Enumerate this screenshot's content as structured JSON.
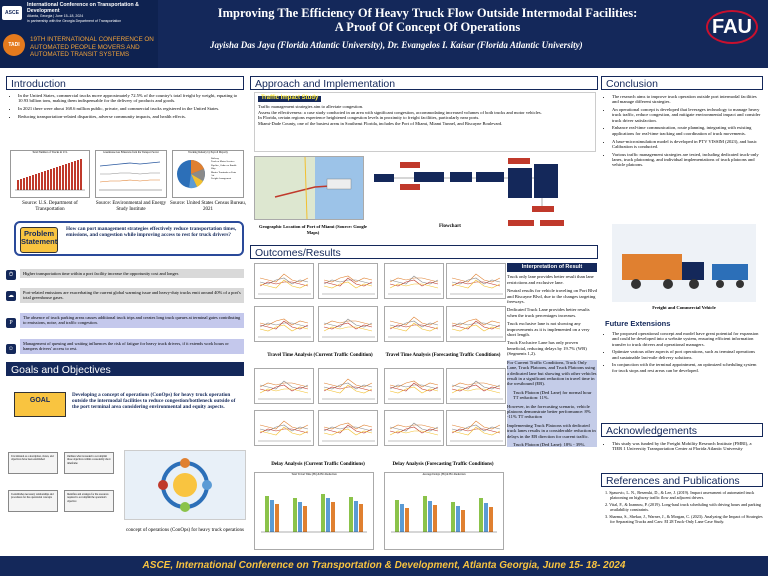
{
  "header": {
    "conf_line1": "International Conference on Transportation & Development",
    "conf_line2": "Atlanta, Georgia | June 15–18, 2024",
    "conf_line3": "in partnership with the Georgia Department of Transportation",
    "asce_logo": "ASCE",
    "tadi_logo": "TADI",
    "conf2": "19TH INTERNATIONAL CONFERENCE ON AUTOMATED PEOPLE MOVERS AND AUTOMATED TRANSIT SYSTEMS",
    "title_line1": "Improving The Efficiency Of Heavy Truck Flow Outside Intermodal Facilities:",
    "title_line2": "A Proof Of Concept Of Operations",
    "authors": "Jayisha Das Jaya (Florida Atlantic University), Dr. Evangelos I. Kaisar (Florida Atlantic University)",
    "fau_logo": "FAU"
  },
  "introduction": {
    "heading": "Introduction",
    "bullets": [
      "In the United States, commercial trucks move approximately 72.5% of the country's total freight by weight, equating to 10.93 billion tons, making them indispensable for the delivery of products and goods.",
      "In 2021 there were about 168.6 million public, private, and commercial trucks registered in the United States.",
      "Reducing transportation-related disparities, adverse community impacts, and health effects."
    ],
    "chart_titles": [
      "Total Number of Trucks in U.S.",
      "Greenhouse Gas Emissions from the Transport Sector",
      "Trucking Industry by Payroll Majority"
    ],
    "pie_legend": [
      "Railway",
      "Truck or Motor Services",
      "Pipeline, Gather or Bundle",
      "Ship",
      "Marine Terminals or Ports",
      "Air",
      "Freight Arrangement"
    ],
    "sources": [
      "Source: U.S. Department of Transportation",
      "Source: Environmental and Energy Study Institute",
      "Source: United States Census Bureau, 2021"
    ]
  },
  "problem": {
    "label": "Problem Statement",
    "text": "How can port management strategies effectively reduce transportation times, emissions, and congestion while improving access to rest for truck drivers?",
    "items": [
      "Higher transportation time within a port facility increase the opportunity cost and longer.",
      "Port-related emissions are exacerbating the current global warming issue and heavy-duty trucks emit around 40% of a port's total greenhouse gases.",
      "The absence of truck parking areas causes additional truck trips and creates long truck queues at terminal gates contributing to emissions, noise, and traffic congestion.",
      "Management of queuing and waiting influences the risk of fatigue for heavy truck drivers, if it extends work hours or hampers drivers' access to rest."
    ]
  },
  "goals": {
    "heading": "Goals and Objectives",
    "label": "GOAL",
    "text": "Developing a concept of operations (ConOps) for heavy truck operation outside the intermodal facilities to reduce congestion/bottleneck outside of the port terminal area considering environmental and equity aspects.",
    "cards": [
      "It is initiated as a description, vision, and objectives have been established",
      "Outlines what is needed to accomplish those objectives within a reasonably short timeframe",
      "It establishes necessary relationships and procedures for the operational concepts",
      "Identifies and arranges for the resources required to accomplish the operation's objective"
    ],
    "caption": "concept of operations (ConOps) for heavy truck operations"
  },
  "approach": {
    "heading": "Approach and Implementation",
    "study_label": "Traffic Impact Study",
    "lines": [
      "Traffic management strategies aim to alleviate congestion.",
      "Assess the effectiveness: a case study conducted in an area with significant congestion, accommodating increased volumes of both trucks and motor vehicles.",
      "In Florida, certain regions experience heightened congestion levels in proximity to freight facilities, particularly near ports.",
      "Miami-Dade County, one of the busiest areas in Southeast Florida, includes the Port of Miami, Miami Tunnel, and Biscayne Boulevard."
    ],
    "map_caption": "Geographic Location of Port of Miami (Source: Google Maps)",
    "flow_caption": "Flowchart"
  },
  "results": {
    "heading": "Outcomes/Results",
    "captions": [
      "Travel Time Analysis (Current Traffic Condition)",
      "Travel Time Analysis (Forecasting Traffic Conditions)",
      "Delay Analysis (Current Traffic Conditions)",
      "Delay Analysis (Forecasting Traffic Conditions)"
    ],
    "bar_titles": [
      "Total Travel Time (Hr) & Hrs Reduction",
      "Average Delays (Hr) & Hrs Reduction"
    ],
    "interp_heading": "Interpretation of Result",
    "interp": [
      "Truck only lane provides better result than lane restrictions and exclusive lane.",
      "Neutral results for vehicle traveling on Port Blvd and Biscayne Blvd, due to the changes targeting freeways.",
      "Dedicated Truck Lane provides better results when the truck percentages increases.",
      "Truck exclusive lane is not showing any improvements as it is implemented on a very short length.",
      "Truck Exclusive Lane has only proven beneficial, reducing delays by 19.7% (WB) (Segments 1,2)."
    ],
    "interp_bullets": [
      "For Current Traffic Conditions, Truck Only Lane, Truck Platoons, and Truck Platoons using a dedicated lane but showing with other vehicles result in a significant reduction in travel time in the westbound (EB).",
      "Truck Platoon (Ded Lane) for normal hour TT reduction: 11%.",
      "However, in the forecasting scenario, vehicle platoons demonstrate better performance: 8% -11% TT reduction",
      "Implementing Truck Platoons with dedicated truck lanes results in a considerable reduction in delays in the EB direction for current traffic.",
      "Truck Platoon (Ded Lane): 18% - 39%."
    ]
  },
  "conclusion": {
    "heading": "Conclusion",
    "bullets": [
      "The research aims to improve truck operation outside port intermodal facilities and manage different strategies.",
      "An operational concept is developed that leverages technology to manage heavy truck traffic, reduce congestion, and mitigate environmental impact and consider truck driver satisfaction.",
      "Enhance real-time communication, route planning, integrating with existing applications for real-time tracking and coordination of truck movements.",
      "A base-microsimulation model is developed in PTV VISSIM (2023), and basic Calibration is conducted.",
      "Various traffic management strategies are tested, including dedicated truck-only lanes, truck platooning, and individual implementations of truck platoons and vehicle platoons."
    ],
    "image_caption": "Freight and Commercial Vehicle",
    "future_heading": "Future Extensions",
    "future": [
      "The proposed operational concept and model have great potential for expansion and could be developed into a website system, ensuring efficient information transfer to truck drivers and operational managers.",
      "Optimize various other aspects of port operations, such as terminal operations and sustainable last-mile delivery solutions.",
      "In conjunction with the terminal appointment, an optimized scheduling system for truck stops and rest areas can be developed."
    ]
  },
  "acknowledgements": {
    "heading": "Acknowledgements",
    "text": "This study was funded by the Freight Mobility Research Institute (FMRI), a TIER 1 University Transportation Center at Florida Atlantic University"
  },
  "references": {
    "heading": "References and Publications",
    "items": [
      "1. Spasovic, L. N., Besenski, D., & Lee, J. (2019). Impact assessment of automated truck platooning on highway traffic flow and adjacent drivers.",
      "2. Vital, F., & Ioannou, P. (2019). Long-haul truck scheduling with driving hours and parking availability constraints.",
      "3. Sharma, S., Shekar, J., Warner, J., & Morgan, C. (2023). Analyzing the Impact of Strategies for Separating Trucks and Cars: EI 28 Truck-Only Lane Case Study."
    ]
  },
  "footer": "ASCE, International Conference on Transportation & Development, Atlanta Georgia, June 15- 18- 2024"
}
